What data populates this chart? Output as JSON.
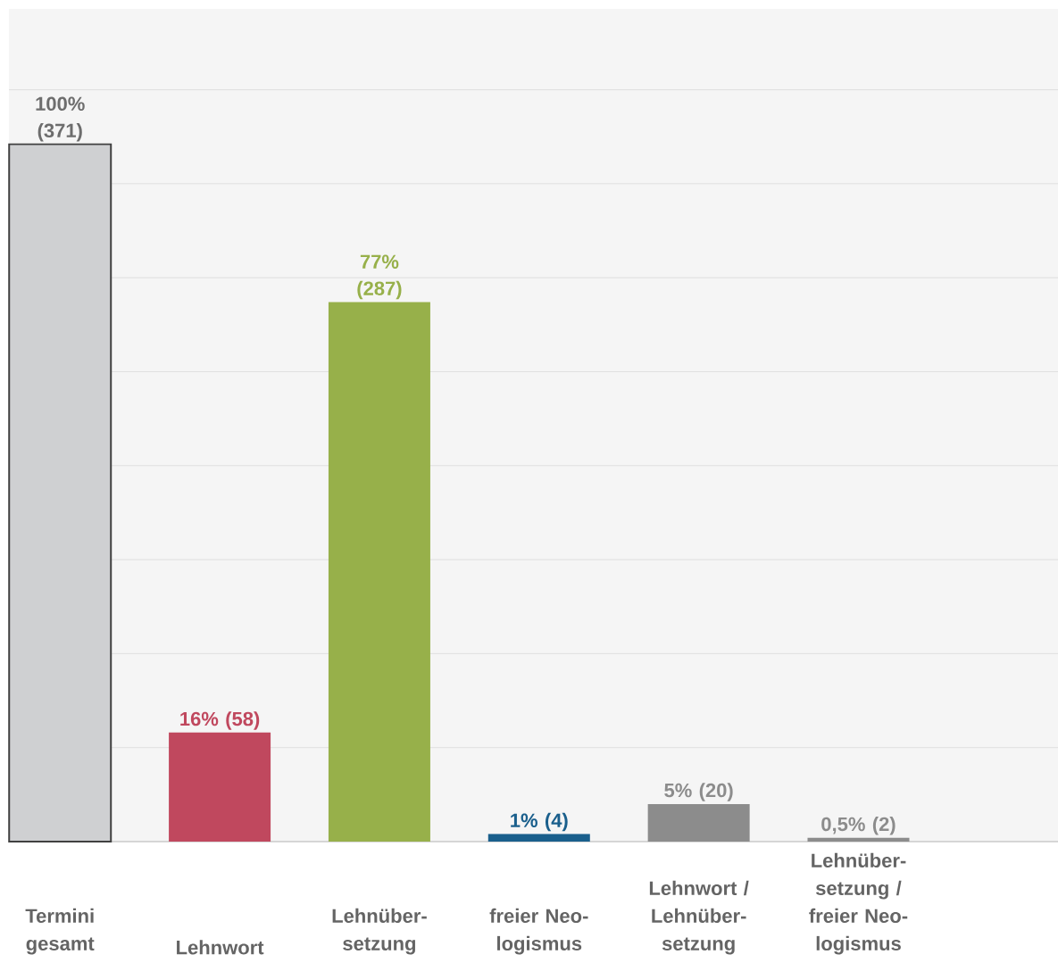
{
  "chart_data": {
    "type": "bar",
    "categories": [
      "Termini gesamt",
      "Lehnwort",
      "Lehnüber-setzung",
      "freier Neo-logismus",
      "Lehnwort / Lehnüber-setzung",
      "Lehnüber-setzung / freier Neo-logismus"
    ],
    "values": [
      371,
      58,
      287,
      4,
      20,
      2
    ],
    "colors": [
      "#cfd0d2",
      "#c0485e",
      "#97b04a",
      "#1a5f8c",
      "#8c8c8c",
      "#8c8c8c"
    ],
    "value_labels": [
      "100% (371)",
      "16% (58)",
      "77% (287)",
      "1% (4)",
      "5% (20)",
      "0,5% (2)"
    ],
    "ylim": [
      0,
      443
    ],
    "yticks": [
      {
        "value": 0,
        "label": null
      },
      {
        "value": 50,
        "label": null
      },
      {
        "value": 100,
        "label": null
      },
      {
        "value": 150,
        "label": null
      },
      {
        "value": 200,
        "label": null
      },
      {
        "value": 250,
        "label": null
      },
      {
        "value": 300,
        "label": null
      },
      {
        "value": 350,
        "label": null
      },
      {
        "value": 400,
        "label": null
      }
    ],
    "grid": "y",
    "tick_labels": "x"
  }
}
